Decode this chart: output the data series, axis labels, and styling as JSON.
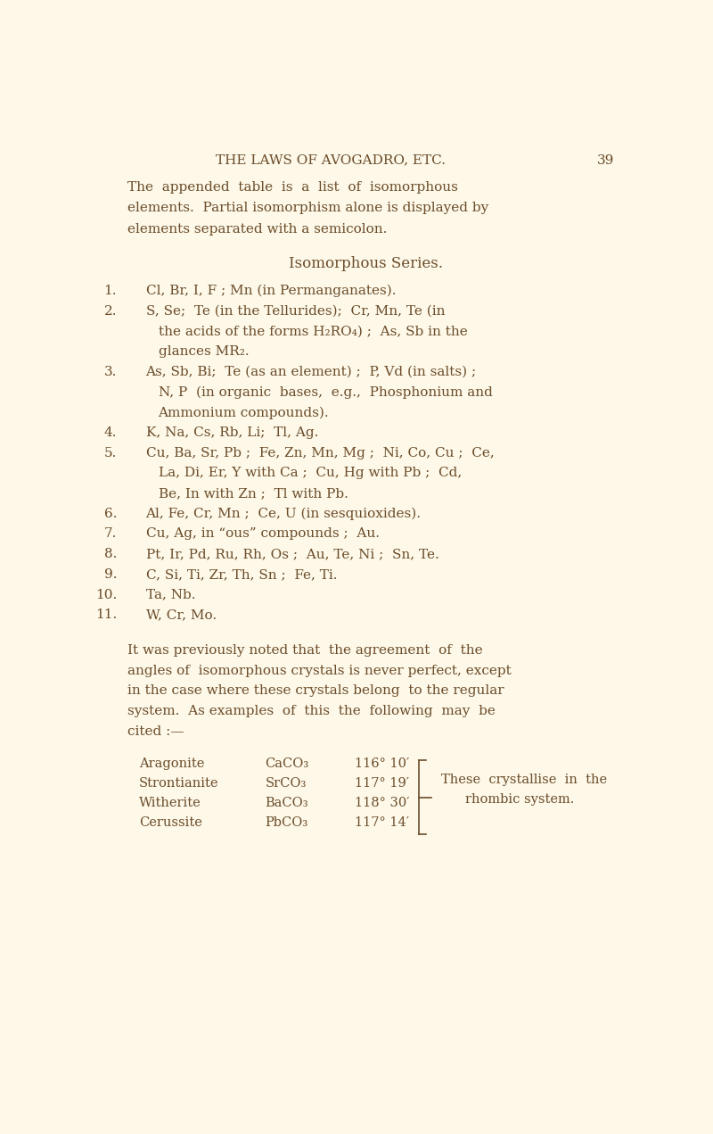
{
  "bg_color": "#fdf8e8",
  "text_color": "#6b4c2a",
  "header_text": "THE LAWS OF AVOGADRO, ETC.",
  "page_number": "39",
  "intro_lines": [
    "The  appended  table  is  a  list  of  isomorphous",
    "elements.  Partial isomorphism alone is displayed by",
    "elements separated with a semicolon."
  ],
  "section_title": "Isomorphous Series.",
  "items": [
    {
      "num": "1.",
      "lines": [
        "Cl, Br, I, F ; Mn (in Permanganates)."
      ]
    },
    {
      "num": "2.",
      "lines": [
        "S, Se;  Te (in the Tellurides);  Cr, Mn, Te (in",
        "the acids of the forms H₂RO₄) ;  As, Sb in the",
        "glances MR₂."
      ]
    },
    {
      "num": "3.",
      "lines": [
        "As, Sb, Bi;  Te (as an element) ;  P, Vd (in salts) ;",
        "N, P  (in organic  bases,  e.g.,  Phosphonium and",
        "Ammonium compounds)."
      ]
    },
    {
      "num": "4.",
      "lines": [
        "K, Na, Cs, Rb, Li;  Tl, Ag."
      ]
    },
    {
      "num": "5.",
      "lines": [
        "Cu, Ba, Sr, Pb ;  Fe, Zn, Mn, Mg ;  Ni, Co, Cu ;  Ce,",
        "La, Di, Er, Y with Ca ;  Cu, Hg with Pb ;  Cd,",
        "Be, In with Zn ;  Tl with Pb."
      ]
    },
    {
      "num": "6.",
      "lines": [
        "Al, Fe, Cr, Mn ;  Ce, U (in sesquioxides)."
      ]
    },
    {
      "num": "7.",
      "lines": [
        "Cu, Ag, in “ous” compounds ;  Au."
      ]
    },
    {
      "num": "8.",
      "lines": [
        "Pt, Ir, Pd, Ru, Rh, Os ;  Au, Te, Ni ;  Sn, Te."
      ]
    },
    {
      "num": "9.",
      "lines": [
        "C, Si, Ti, Zr, Th, Sn ;  Fe, Ti."
      ]
    },
    {
      "num": "10.",
      "lines": [
        "Ta, Nb."
      ]
    },
    {
      "num": "11.",
      "lines": [
        "W, Cr, Mo."
      ]
    }
  ],
  "paragraph_lines": [
    "It was previously noted that  the agreement  of  the",
    "angles of  isomorphous crystals is never perfect, except",
    "in the case where these crystals belong  to the regular",
    "system.  As examples  of  this  the  following  may  be",
    "cited :—"
  ],
  "table_rows": [
    {
      "mineral": "Aragonite",
      "formula": "CaCO₃",
      "angle": "116° 10′"
    },
    {
      "mineral": "Strontianite",
      "formula": "SrCO₃",
      "angle": "117° 19′"
    },
    {
      "mineral": "Witherite",
      "formula": "BaCO₃",
      "angle": "118° 30′"
    },
    {
      "mineral": "Cerussite",
      "formula": "PbCO₃",
      "angle": "117° 14′"
    }
  ],
  "brace_text1": "These  crystallise  in  the",
  "brace_text2": "rhombic system."
}
